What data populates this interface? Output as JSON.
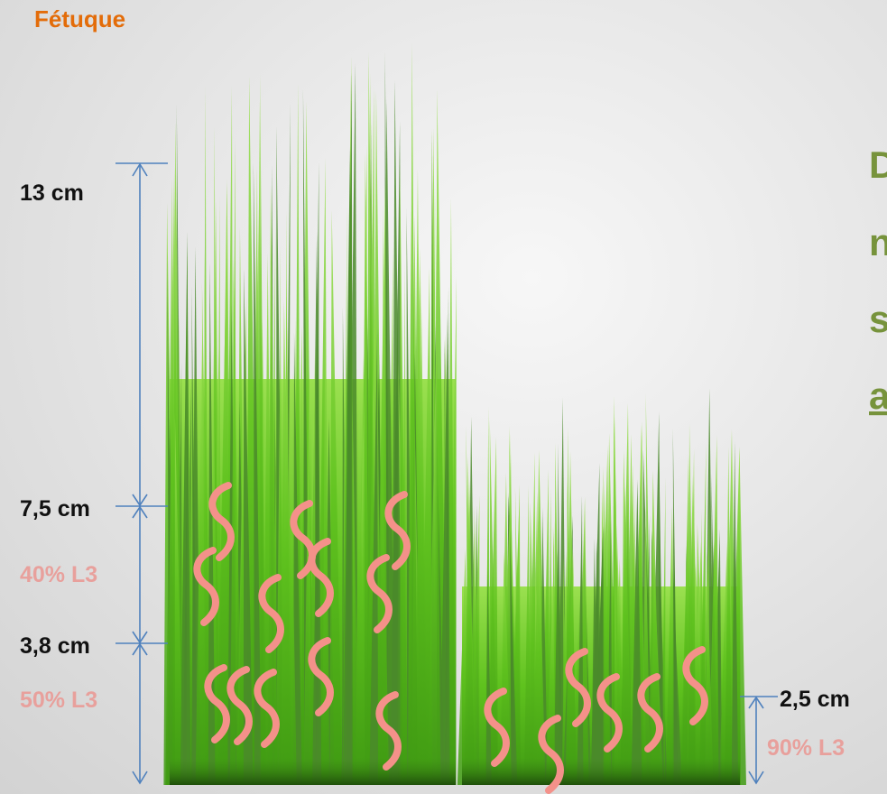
{
  "title": "Fétuque",
  "heights": [
    "13 cm",
    "7,5 cm",
    "3,8 cm",
    "2,5 cm"
  ],
  "shares": [
    "40% L3",
    "50% L3",
    "90% L3"
  ],
  "side_text": [
    "D",
    "n",
    "s",
    "a"
  ]
}
